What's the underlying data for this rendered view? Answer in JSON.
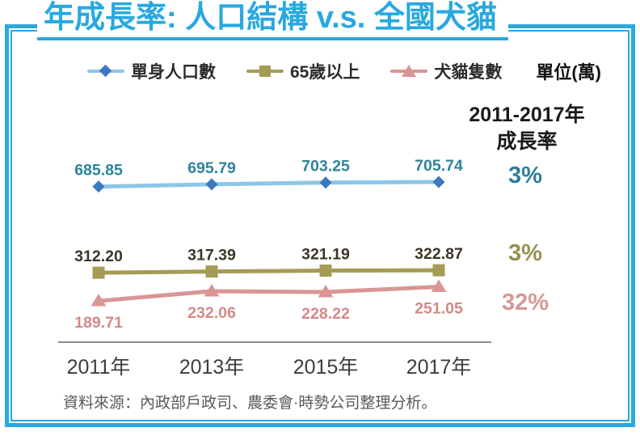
{
  "title": "年成長率: 人口結構 v.s. 全國犬貓",
  "legend": {
    "items": [
      {
        "label": "單身人口數",
        "marker": "diamond",
        "line_color": "#8cc6e8",
        "marker_color": "#3c78c0"
      },
      {
        "label": "65歲以上",
        "marker": "square",
        "line_color": "#a59b55",
        "marker_color": "#a59b55"
      },
      {
        "label": "犬貓隻數",
        "marker": "triangle",
        "line_color": "#d99694",
        "marker_color": "#d99694"
      }
    ],
    "unit_label": "單位(萬)"
  },
  "growth": {
    "header_line1": "2011-2017年",
    "header_line2": "成長率",
    "values": [
      {
        "series": "單身人口數",
        "text": "3%",
        "color": "#2a7f9b"
      },
      {
        "series": "65歲以上",
        "text": "3%",
        "color": "#95904f"
      },
      {
        "series": "犬貓隻數",
        "text": "32%",
        "color": "#d99694"
      }
    ]
  },
  "chart_data": {
    "type": "line",
    "title": "年成長率: 人口結構 v.s. 全國犬貓",
    "unit": "萬",
    "categories": [
      "2011年",
      "2013年",
      "2015年",
      "2017年"
    ],
    "series": [
      {
        "name": "單身人口數",
        "values": [
          685.85,
          695.79,
          703.25,
          705.74
        ],
        "growth_2011_2017": "3%",
        "line_color": "#8cc6e8",
        "marker": "diamond",
        "marker_color": "#3c78c0",
        "label_color": "#2e849b",
        "label_position": "above"
      },
      {
        "name": "65歲以上",
        "values": [
          312.2,
          317.39,
          321.19,
          322.87
        ],
        "growth_2011_2017": "3%",
        "line_color": "#a59b55",
        "marker": "square",
        "marker_color": "#a59b55",
        "label_color": "#3a3626",
        "label_position": "above"
      },
      {
        "name": "犬貓隻數",
        "values": [
          189.71,
          232.06,
          228.22,
          251.05
        ],
        "growth_2011_2017": "32%",
        "line_color": "#d99694",
        "marker": "triangle",
        "marker_color": "#d99694",
        "label_color": "#d28a88",
        "label_position": "below"
      }
    ],
    "grid": false,
    "legend_position": "top",
    "y_axis_visible": false,
    "x_axis_line_color": "#8c8c8c"
  },
  "source": "資料來源：內政部戶政司、農委會·時勢公司整理分析。",
  "colors": {
    "accent_frame_title": "#29a8e0",
    "axis_line": "#8c8c8c",
    "x_tick_label": "#3d3d3d",
    "source_text": "#595959"
  }
}
